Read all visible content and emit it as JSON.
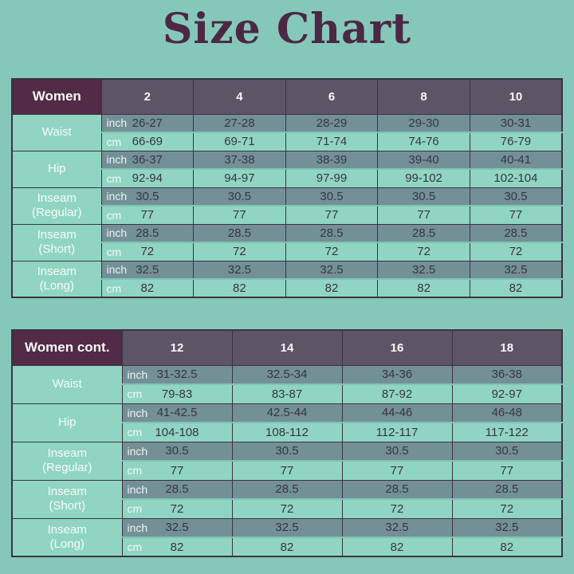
{
  "title": "Size Chart",
  "units": {
    "inch": "inch",
    "cm": "cm"
  },
  "colors": {
    "background": "#85c8b9",
    "title": "#4c2846",
    "header_label_bg": "#522b46",
    "header_size_bg": "#5d5565",
    "inch_row_bg": "#739097",
    "cm_row_bg": "#90d5c2",
    "label_col_bg": "#90d5c2",
    "border": "#3a3342",
    "value_text": "#3a3442",
    "light_text": "#f7f7f5",
    "subrow_divider": "#7fc3b4"
  },
  "chart_data": [
    {
      "type": "table",
      "title": "Women",
      "columns": [
        "2",
        "4",
        "6",
        "8",
        "10"
      ],
      "rows": [
        {
          "label": [
            "Waist"
          ],
          "inch": [
            "26-27",
            "27-28",
            "28-29",
            "29-30",
            "30-31"
          ],
          "cm": [
            "66-69",
            "69-71",
            "71-74",
            "74-76",
            "76-79"
          ]
        },
        {
          "label": [
            "Hip"
          ],
          "inch": [
            "36-37",
            "37-38",
            "38-39",
            "39-40",
            "40-41"
          ],
          "cm": [
            "92-94",
            "94-97",
            "97-99",
            "99-102",
            "102-104"
          ]
        },
        {
          "label": [
            "Inseam",
            "(Regular)"
          ],
          "inch": [
            "30.5",
            "30.5",
            "30.5",
            "30.5",
            "30.5"
          ],
          "cm": [
            "77",
            "77",
            "77",
            "77",
            "77"
          ]
        },
        {
          "label": [
            "Inseam",
            "(Short)"
          ],
          "inch": [
            "28.5",
            "28.5",
            "28.5",
            "28.5",
            "28.5"
          ],
          "cm": [
            "72",
            "72",
            "72",
            "72",
            "72"
          ]
        },
        {
          "label": [
            "Inseam",
            "(Long)"
          ],
          "inch": [
            "32.5",
            "32.5",
            "32.5",
            "32.5",
            "32.5"
          ],
          "cm": [
            "82",
            "82",
            "82",
            "82",
            "82"
          ]
        }
      ]
    },
    {
      "type": "table",
      "title": "Women cont.",
      "columns": [
        "12",
        "14",
        "16",
        "18"
      ],
      "rows": [
        {
          "label": [
            "Waist"
          ],
          "inch": [
            "31-32.5",
            "32.5-34",
            "34-36",
            "36-38"
          ],
          "cm": [
            "79-83",
            "83-87",
            "87-92",
            "92-97"
          ]
        },
        {
          "label": [
            "Hip"
          ],
          "inch": [
            "41-42.5",
            "42.5-44",
            "44-46",
            "46-48"
          ],
          "cm": [
            "104-108",
            "108-112",
            "112-117",
            "117-122"
          ]
        },
        {
          "label": [
            "Inseam",
            "(Regular)"
          ],
          "inch": [
            "30.5",
            "30.5",
            "30.5",
            "30.5"
          ],
          "cm": [
            "77",
            "77",
            "77",
            "77"
          ]
        },
        {
          "label": [
            "Inseam",
            "(Short)"
          ],
          "inch": [
            "28.5",
            "28.5",
            "28.5",
            "28.5"
          ],
          "cm": [
            "72",
            "72",
            "72",
            "72"
          ]
        },
        {
          "label": [
            "Inseam",
            "(Long)"
          ],
          "inch": [
            "32.5",
            "32.5",
            "32.5",
            "32.5"
          ],
          "cm": [
            "82",
            "82",
            "82",
            "82"
          ]
        }
      ]
    }
  ]
}
